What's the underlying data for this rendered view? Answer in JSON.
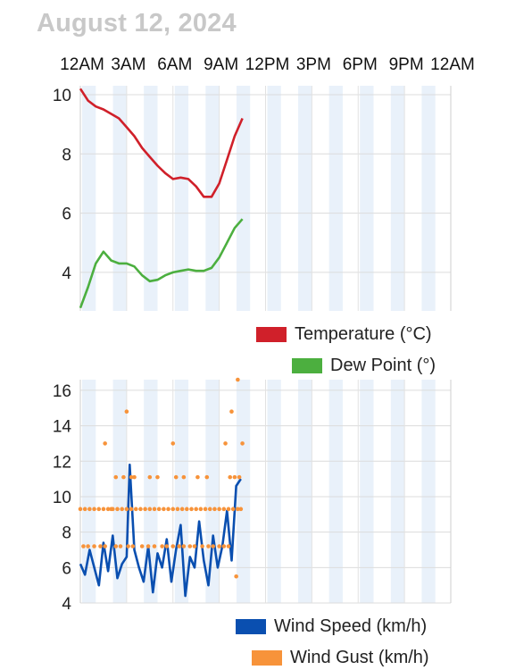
{
  "header": {
    "date": "August 12, 2024"
  },
  "time_axis": {
    "labels": [
      "12AM",
      "3AM",
      "6AM",
      "9AM",
      "12PM",
      "3PM",
      "6PM",
      "9PM",
      "12AM"
    ]
  },
  "legends": {
    "temperature": "Temperature (°C)",
    "dew_point": "Dew Point (°)",
    "wind_speed": "Wind Speed (km/h)",
    "wind_gust": "Wind Gust (km/h)"
  },
  "colors": {
    "temperature": "#d0202a",
    "dew_point": "#4caf3f",
    "wind_speed": "#0a4fb0",
    "wind_gust": "#f7933a",
    "shade": "#e9f1fa"
  },
  "chart_data": [
    {
      "type": "line",
      "x_unit": "hour",
      "xlim": [
        0,
        24
      ],
      "ylim": [
        2.7,
        10.3
      ],
      "yticks": [
        4,
        6,
        8,
        10
      ],
      "grid": true,
      "legend_position": "bottom-right",
      "series": [
        {
          "name": "Temperature (°C)",
          "color": "#d0202a",
          "x": [
            0,
            0.5,
            1,
            1.5,
            2,
            2.5,
            3,
            3.5,
            4,
            4.5,
            5,
            5.5,
            6,
            6.5,
            7,
            7.5,
            8,
            8.5,
            9,
            9.5,
            10,
            10.5
          ],
          "y": [
            10.2,
            9.8,
            9.6,
            9.5,
            9.35,
            9.2,
            8.9,
            8.6,
            8.2,
            7.9,
            7.6,
            7.35,
            7.15,
            7.2,
            7.15,
            6.9,
            6.55,
            6.55,
            7.0,
            7.8,
            8.6,
            9.2
          ]
        },
        {
          "name": "Dew Point (°)",
          "color": "#4caf3f",
          "x": [
            0,
            0.5,
            1,
            1.5,
            2,
            2.5,
            3,
            3.5,
            4,
            4.5,
            5,
            5.5,
            6,
            6.5,
            7,
            7.5,
            8,
            8.5,
            9,
            9.5,
            10,
            10.5
          ],
          "y": [
            2.8,
            3.5,
            4.3,
            4.7,
            4.4,
            4.3,
            4.3,
            4.2,
            3.9,
            3.7,
            3.75,
            3.9,
            4.0,
            4.05,
            4.1,
            4.05,
            4.05,
            4.15,
            4.5,
            5.0,
            5.5,
            5.8
          ]
        }
      ]
    },
    {
      "type": "line",
      "x_unit": "hour",
      "xlim": [
        0,
        24
      ],
      "ylim": [
        4,
        16.6
      ],
      "yticks": [
        4,
        6,
        8,
        10,
        12,
        14,
        16
      ],
      "grid": true,
      "legend_position": "bottom-right",
      "series": [
        {
          "name": "Wind Speed (km/h)",
          "color": "#0a4fb0",
          "style": "line",
          "x": [
            0,
            0.3,
            0.6,
            0.9,
            1.2,
            1.5,
            1.8,
            2.1,
            2.4,
            2.7,
            3.0,
            3.2,
            3.5,
            3.8,
            4.1,
            4.4,
            4.7,
            5.0,
            5.3,
            5.6,
            5.9,
            6.2,
            6.5,
            6.8,
            7.1,
            7.4,
            7.7,
            8.0,
            8.3,
            8.6,
            8.9,
            9.2,
            9.5,
            9.8,
            10.1,
            10.4
          ],
          "y": [
            6.2,
            5.6,
            7.0,
            6.0,
            5.0,
            7.4,
            5.8,
            7.8,
            5.4,
            6.2,
            6.6,
            11.8,
            7.0,
            6.0,
            5.2,
            7.2,
            4.6,
            6.8,
            6.0,
            7.6,
            5.2,
            7.0,
            8.4,
            4.4,
            6.6,
            6.0,
            8.6,
            6.4,
            5.0,
            7.8,
            6.0,
            7.2,
            9.2,
            6.4,
            10.6,
            11.0
          ]
        },
        {
          "name": "Wind Gust (km/h)",
          "color": "#f7933a",
          "style": "points",
          "x": [
            0.0,
            0.3,
            0.6,
            0.9,
            1.2,
            1.5,
            1.8,
            2.0,
            2.1,
            2.4,
            2.7,
            3.0,
            3.3,
            3.6,
            3.9,
            4.2,
            4.5,
            4.8,
            5.1,
            5.4,
            5.7,
            6.0,
            6.3,
            6.6,
            6.9,
            7.2,
            7.5,
            7.8,
            8.1,
            8.4,
            8.7,
            9.0,
            9.3,
            9.6,
            9.9,
            10.2,
            10.4,
            0.2,
            0.5,
            0.9,
            1.3,
            1.6,
            2.3,
            2.6,
            3.1,
            3.4,
            4.0,
            4.4,
            4.8,
            5.3,
            5.6,
            6.0,
            6.4,
            6.7,
            7.1,
            7.4,
            7.9,
            8.3,
            8.6,
            9.0,
            9.3,
            9.6,
            2.3,
            2.8,
            3.3,
            3.5,
            4.5,
            5.0,
            6.2,
            6.7,
            7.6,
            8.2,
            9.7,
            10.0,
            10.3,
            1.6,
            6.0,
            9.4,
            9.8,
            10.5,
            3.0,
            10.2,
            10.1
          ],
          "y": [
            9.3,
            9.3,
            9.3,
            9.3,
            9.3,
            9.3,
            9.3,
            9.3,
            9.3,
            9.3,
            9.3,
            9.3,
            9.3,
            9.3,
            9.3,
            9.3,
            9.3,
            9.3,
            9.3,
            9.3,
            9.3,
            9.3,
            9.3,
            9.3,
            9.3,
            9.3,
            9.3,
            9.3,
            9.3,
            9.3,
            9.3,
            9.3,
            9.3,
            9.3,
            9.3,
            9.3,
            9.3,
            7.2,
            7.2,
            7.2,
            7.2,
            7.2,
            7.2,
            7.2,
            7.2,
            7.2,
            7.2,
            7.2,
            7.2,
            7.2,
            7.2,
            7.2,
            7.2,
            7.2,
            7.2,
            7.2,
            7.2,
            7.2,
            7.2,
            7.2,
            7.2,
            7.2,
            11.1,
            11.1,
            11.1,
            11.1,
            11.1,
            11.1,
            11.1,
            11.1,
            11.1,
            11.1,
            11.1,
            11.1,
            11.1,
            13.0,
            13.0,
            13.0,
            14.8,
            13.0,
            14.8,
            16.6,
            5.5
          ]
        }
      ]
    }
  ]
}
